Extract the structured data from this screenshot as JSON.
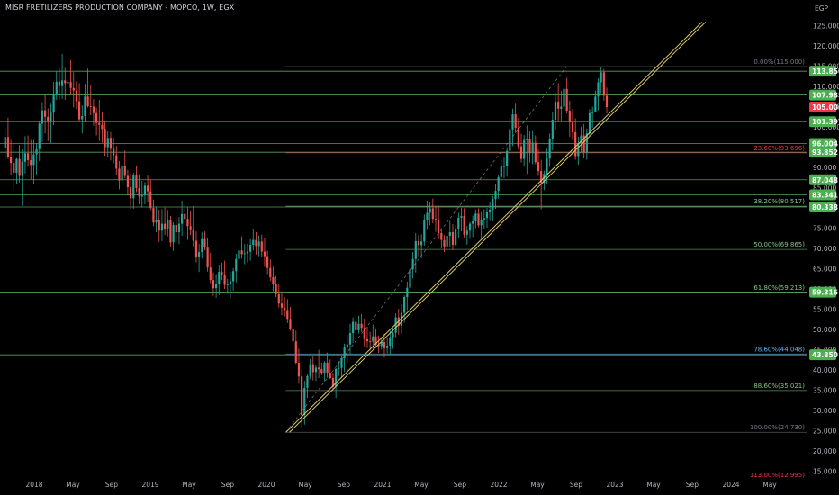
{
  "header": {
    "title": "MISR FRETILIZERS PRODUCTION COMPANY - MOPCO, 1W, EGX"
  },
  "colors": {
    "background": "#000000",
    "up": "#26a69a",
    "down": "#ef5350",
    "hline": "#66bb6a",
    "trendline": "#d4c66a",
    "price_badge_red": "#f23645",
    "price_badge_green": "#4caf50",
    "fib_grey": "#787b86",
    "fib_blue": "#64b5f6",
    "fib_red": "#f23645",
    "fib_green": "#81c784",
    "axis_text": "#b2b5be"
  },
  "chart_data": {
    "type": "candlestick",
    "title": "MISR FRETILIZERS PRODUCTION COMPANY - MOPCO, 1W, EGX",
    "currency": "EGP",
    "x_ticks": [
      "2018",
      "May",
      "Sep",
      "2019",
      "May",
      "Sep",
      "2020",
      "May",
      "Sep",
      "2021",
      "May",
      "Sep",
      "2022",
      "May",
      "Sep",
      "2023",
      "May",
      "Sep",
      "2024",
      "May"
    ],
    "y_ticks": [
      "15.000",
      "20.000",
      "25.000",
      "30.000",
      "35.000",
      "40.000",
      "45.000",
      "50.000",
      "55.000",
      "60.000",
      "65.000",
      "70.000",
      "75.000",
      "80.000",
      "85.000",
      "90.000",
      "95.000",
      "100.000",
      "105.000",
      "110.000",
      "115.000",
      "120.000",
      "125.000"
    ],
    "ylim": [
      12,
      127
    ],
    "time_range": [
      "2017-10",
      "2024-05"
    ],
    "horizontal_levels": [
      113.85,
      107.985,
      101.397,
      96.004,
      93.852,
      87.048,
      83.341,
      80.338,
      59.316,
      43.85
    ],
    "price_badges": [
      {
        "label": "113.850",
        "value": 113.85,
        "color": "green"
      },
      {
        "label": "107.985",
        "value": 107.985,
        "color": "green"
      },
      {
        "label": "105.000",
        "value": 105.0,
        "color": "red"
      },
      {
        "label": "101.397",
        "value": 101.397,
        "color": "green"
      },
      {
        "label": "96.004",
        "value": 96.004,
        "color": "green"
      },
      {
        "label": "93.852",
        "value": 93.852,
        "color": "green"
      },
      {
        "label": "87.048",
        "value": 87.048,
        "color": "green"
      },
      {
        "label": "83.341",
        "value": 83.341,
        "color": "green"
      },
      {
        "label": "80.338",
        "value": 80.338,
        "color": "green"
      },
      {
        "label": "59.316",
        "value": 59.316,
        "color": "green"
      },
      {
        "label": "43.850",
        "value": 43.85,
        "color": "green"
      }
    ],
    "fibonacci": {
      "from": {
        "date": "2020-03",
        "value": 24.73
      },
      "to": {
        "date": "2022-08",
        "value": 115.0
      },
      "levels": [
        {
          "label": "0.00%(115.000)",
          "value": 115.0,
          "color": "grey"
        },
        {
          "label": "23.60%(93.696)",
          "value": 93.696,
          "color": "red"
        },
        {
          "label": "38.20%(80.517)",
          "value": 80.517,
          "color": "green"
        },
        {
          "label": "50.00%(69.865)",
          "value": 69.865,
          "color": "green"
        },
        {
          "label": "61.80%(59.213)",
          "value": 59.213,
          "color": "green"
        },
        {
          "label": "78.60%(44.048)",
          "value": 44.048,
          "color": "blue"
        },
        {
          "label": "88.60%(35.021)",
          "value": 35.021,
          "color": "green"
        },
        {
          "label": "100.00%(24.730)",
          "value": 24.73,
          "color": "grey"
        },
        {
          "label": "113.00%(12.995)",
          "value": 12.995,
          "color": "red"
        }
      ]
    },
    "trendline": {
      "start": {
        "date": "2020-03",
        "value": 24.7
      },
      "end": {
        "date": "2023-10",
        "value": 126.0
      }
    },
    "candles_ohlc": [
      [
        95.0,
        99.7,
        91.7,
        97.6
      ],
      [
        97.6,
        102.4,
        92.2,
        92.7
      ],
      [
        92.7,
        96.9,
        88.3,
        91.2
      ],
      [
        91.2,
        96.1,
        84.7,
        88.8
      ],
      [
        88.8,
        92.4,
        85.9,
        92.2
      ],
      [
        92.2,
        95.6,
        86.4,
        88.0
      ],
      [
        88.0,
        94.5,
        80.6,
        91.5
      ],
      [
        91.5,
        97.8,
        88.6,
        93.6
      ],
      [
        93.6,
        98.0,
        90.3,
        91.9
      ],
      [
        91.9,
        96.9,
        87.2,
        90.7
      ],
      [
        90.7,
        96.9,
        85.9,
        93.3
      ],
      [
        93.3,
        96.0,
        88.4,
        94.6
      ],
      [
        94.6,
        101.4,
        91.7,
        100.9
      ],
      [
        100.9,
        106.2,
        96.4,
        104.2
      ],
      [
        104.2,
        108.1,
        98.5,
        102.6
      ],
      [
        102.6,
        104.7,
        96.6,
        101.5
      ],
      [
        101.5,
        105.8,
        96.1,
        103.6
      ],
      [
        103.6,
        111.2,
        100.5,
        108.2
      ],
      [
        108.2,
        113.9,
        106.8,
        111.3
      ],
      [
        111.3,
        114.6,
        106.9,
        110.2
      ],
      [
        110.2,
        118.1,
        107.0,
        111.6
      ],
      [
        111.6,
        114.7,
        106.8,
        110.9
      ],
      [
        110.9,
        117.8,
        107.9,
        111.2
      ],
      [
        111.2,
        116.6,
        108.0,
        109.7
      ],
      [
        109.7,
        113.6,
        104.9,
        109.1
      ],
      [
        109.1,
        111.4,
        104.5,
        106.4
      ],
      [
        106.4,
        110.9,
        101.5,
        102.0
      ],
      [
        102.0,
        105.4,
        98.5,
        102.8
      ],
      [
        102.8,
        110.7,
        101.2,
        107.6
      ],
      [
        107.6,
        114.5,
        104.9,
        105.2
      ],
      [
        105.2,
        110.5,
        103.0,
        105.1
      ],
      [
        105.1,
        107.0,
        100.4,
        103.5
      ],
      [
        103.5,
        104.9,
        98.0,
        101.1
      ],
      [
        101.1,
        106.8,
        96.6,
        100.6
      ],
      [
        100.6,
        103.9,
        96.2,
        99.6
      ],
      [
        99.6,
        101.3,
        93.0,
        95.1
      ],
      [
        95.1,
        99.0,
        92.7,
        97.4
      ],
      [
        97.4,
        98.8,
        91.8,
        94.7
      ],
      [
        94.7,
        97.5,
        91.1,
        93.1
      ],
      [
        93.1,
        95.4,
        88.3,
        89.8
      ],
      [
        89.8,
        91.7,
        84.7,
        86.9
      ],
      [
        86.9,
        90.6,
        84.9,
        90.5
      ],
      [
        90.5,
        94.3,
        87.4,
        88.0
      ],
      [
        88.0,
        89.5,
        83.1,
        85.2
      ],
      [
        85.2,
        88.6,
        79.9,
        82.5
      ],
      [
        82.5,
        88.8,
        79.9,
        88.1
      ],
      [
        88.1,
        90.5,
        84.0,
        85.0
      ],
      [
        85.0,
        88.4,
        81.0,
        82.9
      ],
      [
        82.9,
        86.8,
        80.2,
        83.2
      ],
      [
        83.2,
        86.5,
        81.0,
        85.6
      ],
      [
        85.6,
        88.2,
        81.4,
        84.2
      ],
      [
        84.2,
        87.0,
        79.6,
        80.1
      ],
      [
        80.1,
        82.2,
        75.6,
        76.5
      ],
      [
        76.5,
        80.4,
        74.1,
        77.2
      ],
      [
        77.2,
        79.7,
        71.7,
        74.5
      ],
      [
        74.5,
        79.8,
        71.9,
        76.2
      ],
      [
        76.2,
        80.2,
        73.4,
        75.0
      ],
      [
        75.0,
        79.6,
        73.1,
        77.0
      ],
      [
        77.0,
        78.1,
        70.6,
        71.6
      ],
      [
        71.6,
        76.6,
        69.5,
        75.9
      ],
      [
        75.9,
        77.8,
        71.6,
        74.1
      ],
      [
        74.1,
        77.9,
        71.2,
        76.2
      ],
      [
        76.2,
        81.9,
        73.2,
        78.6
      ],
      [
        78.6,
        80.7,
        77.1,
        77.4
      ],
      [
        77.4,
        80.3,
        72.2,
        75.6
      ],
      [
        75.6,
        79.2,
        73.4,
        74.6
      ],
      [
        74.6,
        80.6,
        70.6,
        72.0
      ],
      [
        72.0,
        74.3,
        66.7,
        67.9
      ],
      [
        67.9,
        71.2,
        64.3,
        69.2
      ],
      [
        69.2,
        74.1,
        67.6,
        72.4
      ],
      [
        72.4,
        74.3,
        69.6,
        70.3
      ],
      [
        70.3,
        72.8,
        64.4,
        65.4
      ],
      [
        65.4,
        69.0,
        61.6,
        62.3
      ],
      [
        62.3,
        64.2,
        58.4,
        60.3
      ],
      [
        60.3,
        63.8,
        57.9,
        61.3
      ],
      [
        61.3,
        66.1,
        58.6,
        64.3
      ],
      [
        64.3,
        66.6,
        62.3,
        63.6
      ],
      [
        63.6,
        67.1,
        60.1,
        61.1
      ],
      [
        61.1,
        62.6,
        58.9,
        61.2
      ],
      [
        61.2,
        64.4,
        57.8,
        62.0
      ],
      [
        62.0,
        65.3,
        59.7,
        64.5
      ],
      [
        64.5,
        68.8,
        61.7,
        67.5
      ],
      [
        67.5,
        70.3,
        64.6,
        69.6
      ],
      [
        69.6,
        73.1,
        67.6,
        68.7
      ],
      [
        68.7,
        71.2,
        66.2,
        68.9
      ],
      [
        68.9,
        71.3,
        66.6,
        69.3
      ],
      [
        69.3,
        72.4,
        67.1,
        71.0
      ],
      [
        71.0,
        75.0,
        69.6,
        72.2
      ],
      [
        72.2,
        74.1,
        68.6,
        70.7
      ],
      [
        70.7,
        73.3,
        68.2,
        71.8
      ],
      [
        71.8,
        73.5,
        68.0,
        69.3
      ],
      [
        69.3,
        72.7,
        65.6,
        68.2
      ],
      [
        68.2,
        69.5,
        63.8,
        65.3
      ],
      [
        65.3,
        67.4,
        62.1,
        63.0
      ],
      [
        63.0,
        65.6,
        59.5,
        61.2
      ],
      [
        61.2,
        63.3,
        58.1,
        58.8
      ],
      [
        58.8,
        61.2,
        55.5,
        56.5
      ],
      [
        56.5,
        59.5,
        53.6,
        55.5
      ],
      [
        55.5,
        58.1,
        53.3,
        54.9
      ],
      [
        54.9,
        57.6,
        51.7,
        52.7
      ],
      [
        52.7,
        55.7,
        49.8,
        50.1
      ],
      [
        50.1,
        51.9,
        45.0,
        47.2
      ],
      [
        47.2,
        49.8,
        41.6,
        41.9
      ],
      [
        41.9,
        45.4,
        36.7,
        38.5
      ],
      [
        38.5,
        40.3,
        26.1,
        29.0
      ],
      [
        29.0,
        37.4,
        26.6,
        35.7
      ],
      [
        35.7,
        39.1,
        33.2,
        38.6
      ],
      [
        38.6,
        42.8,
        37.8,
        41.5
      ],
      [
        41.5,
        43.4,
        37.5,
        39.6
      ],
      [
        39.6,
        41.5,
        37.4,
        40.7
      ],
      [
        40.7,
        45.1,
        38.1,
        40.3
      ],
      [
        40.3,
        41.9,
        38.8,
        39.4
      ],
      [
        39.4,
        42.3,
        37.3,
        41.9
      ],
      [
        41.9,
        44.4,
        38.2,
        39.4
      ],
      [
        39.4,
        42.7,
        37.8,
        38.1
      ],
      [
        38.1,
        39.4,
        35.4,
        36.0
      ],
      [
        36.0,
        40.6,
        33.2,
        40.4
      ],
      [
        40.4,
        42.3,
        38.6,
        40.6
      ],
      [
        40.6,
        43.6,
        38.3,
        43.0
      ],
      [
        43.0,
        46.6,
        39.6,
        45.7
      ],
      [
        45.7,
        48.8,
        41.9,
        46.4
      ],
      [
        46.4,
        51.5,
        44.0,
        49.2
      ],
      [
        49.2,
        53.1,
        46.8,
        52.0
      ],
      [
        52.0,
        53.7,
        48.3,
        49.9
      ],
      [
        49.9,
        53.5,
        49.1,
        51.5
      ],
      [
        51.5,
        53.9,
        49.5,
        50.5
      ],
      [
        50.5,
        52.8,
        45.8,
        47.7
      ],
      [
        47.7,
        50.8,
        45.5,
        47.2
      ],
      [
        47.2,
        49.5,
        44.9,
        47.1
      ],
      [
        47.1,
        51.3,
        45.3,
        48.4
      ],
      [
        48.4,
        50.4,
        45.6,
        46.3
      ],
      [
        46.3,
        48.6,
        44.3,
        46.0
      ],
      [
        46.0,
        48.3,
        45.2,
        47.0
      ],
      [
        47.0,
        49.1,
        43.2,
        45.5
      ],
      [
        45.5,
        48.0,
        44.2,
        46.1
      ],
      [
        46.1,
        49.8,
        43.9,
        48.2
      ],
      [
        48.2,
        50.6,
        45.3,
        49.3
      ],
      [
        49.3,
        54.1,
        48.2,
        53.1
      ],
      [
        53.1,
        55.2,
        48.8,
        51.0
      ],
      [
        51.0,
        56.3,
        49.0,
        54.2
      ],
      [
        54.2,
        58.5,
        51.8,
        58.1
      ],
      [
        58.1,
        61.9,
        54.9,
        60.4
      ],
      [
        60.4,
        66.2,
        56.5,
        64.9
      ],
      [
        64.9,
        69.2,
        62.7,
        67.5
      ],
      [
        67.5,
        73.9,
        64.2,
        71.9
      ],
      [
        71.9,
        73.4,
        68.2,
        70.9
      ],
      [
        70.9,
        73.6,
        67.7,
        71.8
      ],
      [
        71.8,
        78.5,
        70.8,
        77.0
      ],
      [
        77.0,
        81.9,
        74.7,
        78.9
      ],
      [
        78.9,
        81.6,
        75.8,
        80.0
      ],
      [
        80.0,
        82.4,
        76.3,
        77.4
      ],
      [
        77.4,
        80.6,
        74.2,
        77.0
      ],
      [
        77.0,
        80.6,
        72.4,
        73.9
      ],
      [
        73.9,
        75.1,
        70.1,
        72.2
      ],
      [
        72.2,
        73.4,
        69.2,
        70.6
      ],
      [
        70.6,
        74.1,
        68.9,
        73.2
      ],
      [
        73.2,
        76.9,
        70.3,
        74.1
      ],
      [
        74.1,
        76.1,
        69.7,
        71.0
      ],
      [
        71.0,
        75.8,
        70.4,
        74.9
      ],
      [
        74.9,
        78.9,
        72.6,
        77.7
      ],
      [
        77.7,
        80.1,
        74.3,
        78.1
      ],
      [
        78.1,
        80.0,
        72.7,
        73.5
      ],
      [
        73.5,
        75.7,
        71.0,
        74.5
      ],
      [
        74.5,
        76.6,
        72.5,
        76.2
      ],
      [
        76.2,
        78.2,
        72.9,
        76.8
      ],
      [
        76.8,
        79.7,
        75.1,
        78.7
      ],
      [
        78.7,
        80.0,
        75.3,
        75.8
      ],
      [
        75.8,
        79.1,
        72.4,
        77.1
      ],
      [
        77.1,
        79.8,
        75.0,
        77.6
      ],
      [
        77.6,
        80.1,
        75.2,
        79.0
      ],
      [
        79.0,
        81.5,
        76.9,
        79.7
      ],
      [
        79.7,
        83.1,
        76.8,
        82.3
      ],
      [
        82.3,
        86.1,
        79.9,
        84.3
      ],
      [
        84.3,
        88.3,
        82.4,
        87.7
      ],
      [
        87.7,
        91.8,
        86.8,
        90.3
      ],
      [
        90.3,
        92.8,
        87.4,
        90.4
      ],
      [
        90.4,
        95.1,
        87.8,
        94.2
      ],
      [
        94.2,
        102.3,
        91.2,
        99.5
      ],
      [
        99.5,
        104.6,
        95.4,
        103.2
      ],
      [
        103.2,
        105.8,
        98.6,
        99.9
      ],
      [
        99.9,
        102.3,
        94.5,
        95.3
      ],
      [
        95.3,
        98.4,
        91.3,
        92.2
      ],
      [
        92.2,
        98.1,
        90.3,
        96.9
      ],
      [
        96.9,
        100.5,
        88.5,
        97.0
      ],
      [
        97.0,
        99.0,
        91.3,
        93.9
      ],
      [
        93.9,
        99.1,
        90.9,
        96.2
      ],
      [
        96.2,
        98.0,
        90.9,
        91.4
      ],
      [
        91.4,
        94.6,
        88.0,
        89.2
      ],
      [
        89.2,
        92.0,
        79.8,
        86.3
      ],
      [
        86.3,
        89.3,
        84.5,
        88.5
      ],
      [
        88.5,
        94.7,
        85.9,
        92.3
      ],
      [
        92.3,
        98.5,
        90.2,
        97.1
      ],
      [
        97.1,
        103.8,
        94.3,
        101.9
      ],
      [
        101.9,
        108.5,
        99.2,
        106.3
      ],
      [
        106.3,
        110.9,
        101.6,
        104.6
      ],
      [
        104.6,
        109.1,
        101.4,
        105.1
      ],
      [
        105.1,
        113.0,
        103.4,
        109.5
      ],
      [
        109.5,
        112.2,
        103.4,
        104.1
      ],
      [
        104.1,
        106.6,
        97.7,
        101.2
      ],
      [
        101.2,
        104.5,
        96.8,
        98.8
      ],
      [
        98.8,
        102.2,
        92.0,
        92.9
      ],
      [
        92.9,
        97.7,
        90.8,
        96.0
      ],
      [
        96.0,
        100.2,
        93.8,
        98.0
      ],
      [
        98.0,
        100.8,
        92.3,
        93.9
      ],
      [
        93.9,
        99.7,
        92.0,
        98.5
      ],
      [
        98.5,
        104.5,
        97.9,
        103.5
      ],
      [
        103.5,
        105.1,
        99.9,
        103.9
      ],
      [
        103.9,
        109.1,
        103.7,
        107.6
      ],
      [
        107.6,
        112.1,
        104.2,
        111.1
      ],
      [
        111.1,
        115.0,
        108.4,
        113.6
      ],
      [
        113.6,
        114.4,
        106.6,
        107.8
      ],
      [
        107.8,
        109.8,
        103.4,
        105.0
      ]
    ]
  }
}
